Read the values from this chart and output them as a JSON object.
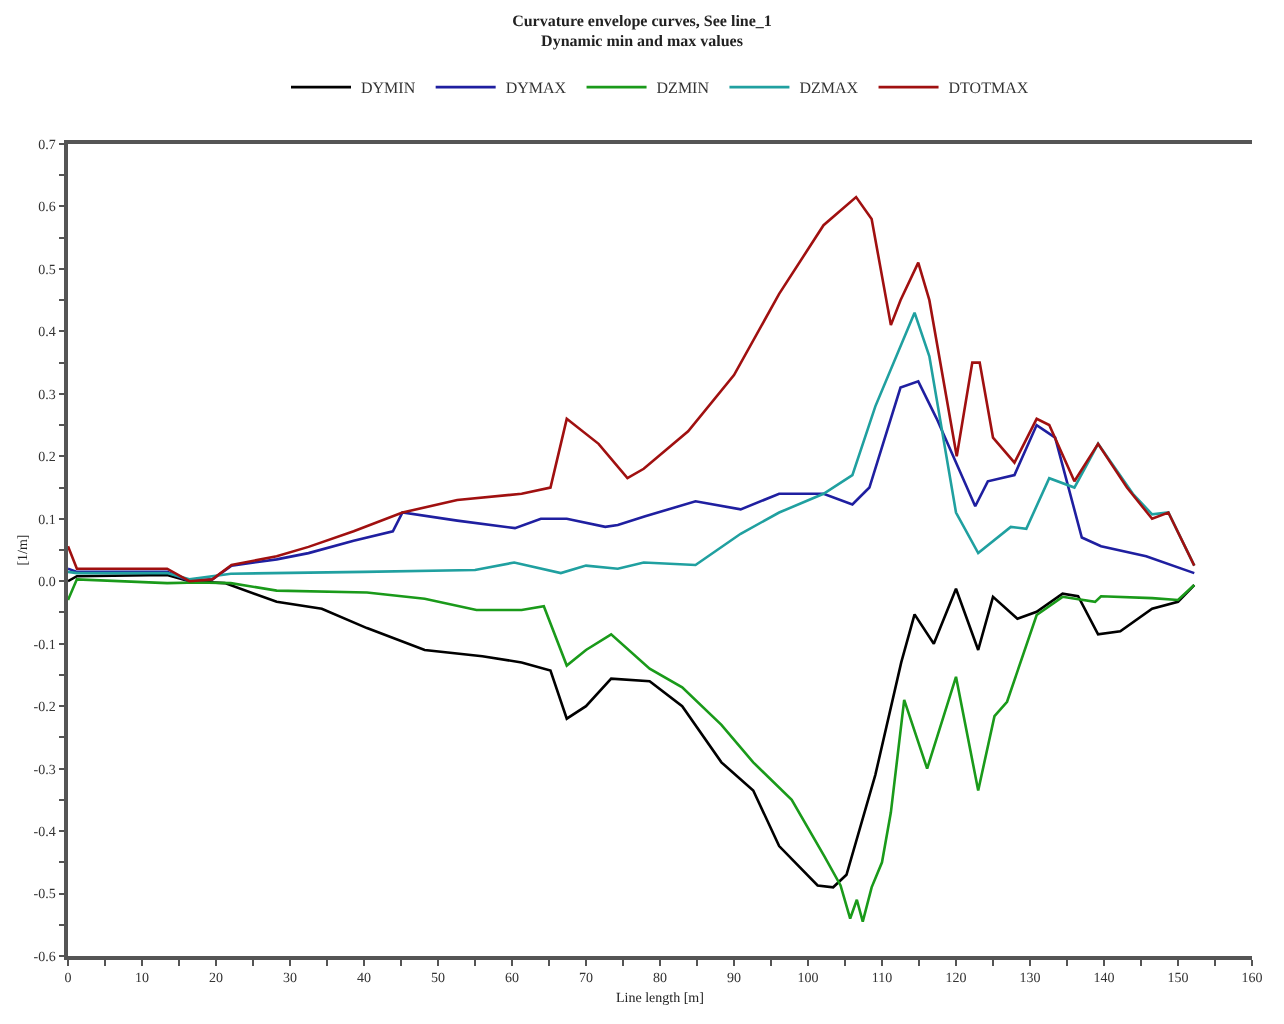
{
  "chart_data": {
    "type": "line",
    "title": "Curvature envelope curves, See line_1",
    "subtitle": "Dynamic min and max values",
    "xlabel": "Line length [m]",
    "ylabel": "[1/m]",
    "xlim": [
      0,
      160
    ],
    "ylim": [
      -0.6,
      0.7
    ],
    "xticks": [
      0,
      {
        "value": 5,
        "label": null
      },
      10,
      {
        "value": 15,
        "label": null
      },
      20,
      {
        "value": 25,
        "label": null
      },
      30,
      {
        "value": 35,
        "label": null
      },
      40,
      {
        "value": 45,
        "label": null
      },
      50,
      {
        "value": 55,
        "label": null
      },
      60,
      {
        "value": 65,
        "label": null
      },
      70,
      {
        "value": 75,
        "label": null
      },
      80,
      {
        "value": 85,
        "label": null
      },
      90,
      {
        "value": 95,
        "label": null
      },
      100,
      {
        "value": 105,
        "label": null
      },
      110,
      {
        "value": 115,
        "label": null
      },
      120,
      {
        "value": 125,
        "label": null
      },
      130,
      {
        "value": 135,
        "label": null
      },
      140,
      {
        "value": 145,
        "label": null
      },
      150,
      {
        "value": 155,
        "label": null
      },
      160
    ],
    "yticks": [
      -0.6,
      {
        "value": -0.55,
        "label": null
      },
      -0.5,
      {
        "value": -0.45,
        "label": null
      },
      -0.4,
      {
        "value": -0.35,
        "label": null
      },
      -0.3,
      {
        "value": -0.25,
        "label": null
      },
      -0.2,
      {
        "value": -0.15,
        "label": null
      },
      -0.1,
      {
        "value": -0.05,
        "label": null
      },
      {
        "value": 0,
        "label": "0.0"
      },
      {
        "value": 0.05,
        "label": null
      },
      0.1,
      {
        "value": 0.15,
        "label": null
      },
      0.2,
      {
        "value": 0.25,
        "label": null
      },
      0.3,
      {
        "value": 0.35,
        "label": null
      },
      0.4,
      {
        "value": 0.45,
        "label": null
      },
      0.5,
      {
        "value": 0.55,
        "label": null
      },
      0.6,
      {
        "value": 0.65,
        "label": null
      },
      0.7
    ],
    "grid": false,
    "legend": "top",
    "marker": "none",
    "line_style": "solid",
    "series": [
      {
        "name": "DYMIN",
        "color": "#000000",
        "x": [
          0,
          1.2,
          13.4,
          16.4,
          21.2,
          28.2,
          34.3,
          40.4,
          48.2,
          56,
          61.3,
          65.2,
          67.4,
          70,
          73.4,
          78.6,
          83,
          88.3,
          92.6,
          96.1,
          101.3,
          103.4,
          105.2,
          109.1,
          112.6,
          114.4,
          117,
          120,
          123,
          125,
          128.3,
          130.9,
          134.4,
          136.5,
          139.2,
          142.2,
          146.5,
          150,
          152.2
        ],
        "values": [
          0.0,
          0.008,
          0.01,
          0.0,
          -0.003,
          -0.033,
          -0.044,
          -0.075,
          -0.11,
          -0.12,
          -0.13,
          -0.143,
          -0.22,
          -0.2,
          -0.156,
          -0.16,
          -0.2,
          -0.29,
          -0.335,
          -0.424,
          -0.487,
          -0.49,
          -0.47,
          -0.31,
          -0.13,
          -0.053,
          -0.1,
          -0.012,
          -0.11,
          -0.025,
          -0.06,
          -0.049,
          -0.02,
          -0.024,
          -0.085,
          -0.08,
          -0.044,
          -0.033,
          -0.006
        ]
      },
      {
        "name": "DYMAX",
        "color": "#1f1fa0",
        "x": [
          0,
          1.2,
          13.4,
          16.4,
          19.5,
          22.1,
          28.2,
          32.5,
          38.6,
          43.9,
          45.2,
          52.6,
          60.4,
          63.9,
          67.4,
          72.6,
          74.3,
          78,
          84.8,
          90.9,
          96.1,
          102.1,
          106,
          108.3,
          112.5,
          114.9,
          117.4,
          122.6,
          124.3,
          127.9,
          130.9,
          133.4,
          137,
          139.6,
          145.7,
          152.2
        ],
        "values": [
          0.02,
          0.015,
          0.015,
          0.0,
          0.003,
          0.025,
          0.035,
          0.045,
          0.065,
          0.08,
          0.11,
          0.097,
          0.085,
          0.1,
          0.1,
          0.087,
          0.09,
          0.104,
          0.128,
          0.115,
          0.14,
          0.14,
          0.123,
          0.15,
          0.31,
          0.32,
          0.26,
          0.12,
          0.16,
          0.17,
          0.25,
          0.23,
          0.07,
          0.056,
          0.04,
          0.013
        ]
      },
      {
        "name": "DZMIN",
        "color": "#1a9a1a",
        "x": [
          0,
          1.2,
          13.4,
          17.5,
          22,
          28.2,
          40.4,
          48.2,
          55.2,
          61.3,
          64.3,
          67.4,
          70,
          73.4,
          78.6,
          83,
          88.3,
          92.6,
          97.8,
          102.2,
          104.4,
          105.7,
          106.6,
          107.4,
          108.6,
          110,
          111.2,
          113,
          116.1,
          120,
          123,
          125.2,
          126.9,
          130.9,
          134.4,
          138.8,
          139.6,
          146.5,
          150,
          152.2
        ],
        "values": [
          -0.03,
          0.003,
          -0.003,
          -0.002,
          -0.003,
          -0.015,
          -0.018,
          -0.028,
          -0.046,
          -0.046,
          -0.04,
          -0.135,
          -0.11,
          -0.085,
          -0.14,
          -0.17,
          -0.23,
          -0.29,
          -0.35,
          -0.44,
          -0.487,
          -0.54,
          -0.51,
          -0.545,
          -0.49,
          -0.45,
          -0.37,
          -0.19,
          -0.3,
          -0.153,
          -0.335,
          -0.216,
          -0.193,
          -0.054,
          -0.025,
          -0.033,
          -0.024,
          -0.027,
          -0.03,
          -0.006
        ]
      },
      {
        "name": "DZMAX",
        "color": "#20a0a0",
        "x": [
          0,
          1.2,
          13.4,
          16.4,
          22,
          40,
          55,
          60.3,
          66.6,
          70,
          74.3,
          77.8,
          84.8,
          90.9,
          96.1,
          102.1,
          106,
          109.1,
          114.4,
          116.4,
          120,
          123,
          127.4,
          129.5,
          132.6,
          136,
          139.2,
          143.9,
          146.5,
          148.7,
          152.2
        ],
        "values": [
          0.015,
          0.013,
          0.013,
          0.003,
          0.012,
          0.015,
          0.018,
          0.03,
          0.013,
          0.025,
          0.02,
          0.03,
          0.026,
          0.076,
          0.11,
          0.14,
          0.17,
          0.28,
          0.43,
          0.36,
          0.11,
          0.045,
          0.087,
          0.084,
          0.165,
          0.15,
          0.22,
          0.14,
          0.107,
          0.11,
          0.025
        ]
      },
      {
        "name": "DTOTMAX",
        "color": "#a01010",
        "x": [
          0,
          1.2,
          13.4,
          16.4,
          19.5,
          22.1,
          28.2,
          32.5,
          38.6,
          45.2,
          52.6,
          61.3,
          65.2,
          67.4,
          71.7,
          75.6,
          77.8,
          83.8,
          90,
          96.1,
          102.1,
          106.5,
          108.6,
          111.2,
          112.5,
          114.9,
          116.4,
          120.1,
          122.2,
          123.2,
          125,
          127.9,
          130.9,
          132.6,
          136,
          139.2,
          143.1,
          146.5,
          148.7,
          152.2
        ],
        "values": [
          0.056,
          0.02,
          0.02,
          0.0,
          0.003,
          0.026,
          0.04,
          0.055,
          0.08,
          0.11,
          0.13,
          0.14,
          0.15,
          0.26,
          0.22,
          0.165,
          0.18,
          0.24,
          0.33,
          0.46,
          0.57,
          0.615,
          0.58,
          0.41,
          0.45,
          0.51,
          0.45,
          0.2,
          0.35,
          0.35,
          0.23,
          0.19,
          0.26,
          0.25,
          0.16,
          0.22,
          0.15,
          0.1,
          0.11,
          0.025
        ]
      }
    ]
  }
}
